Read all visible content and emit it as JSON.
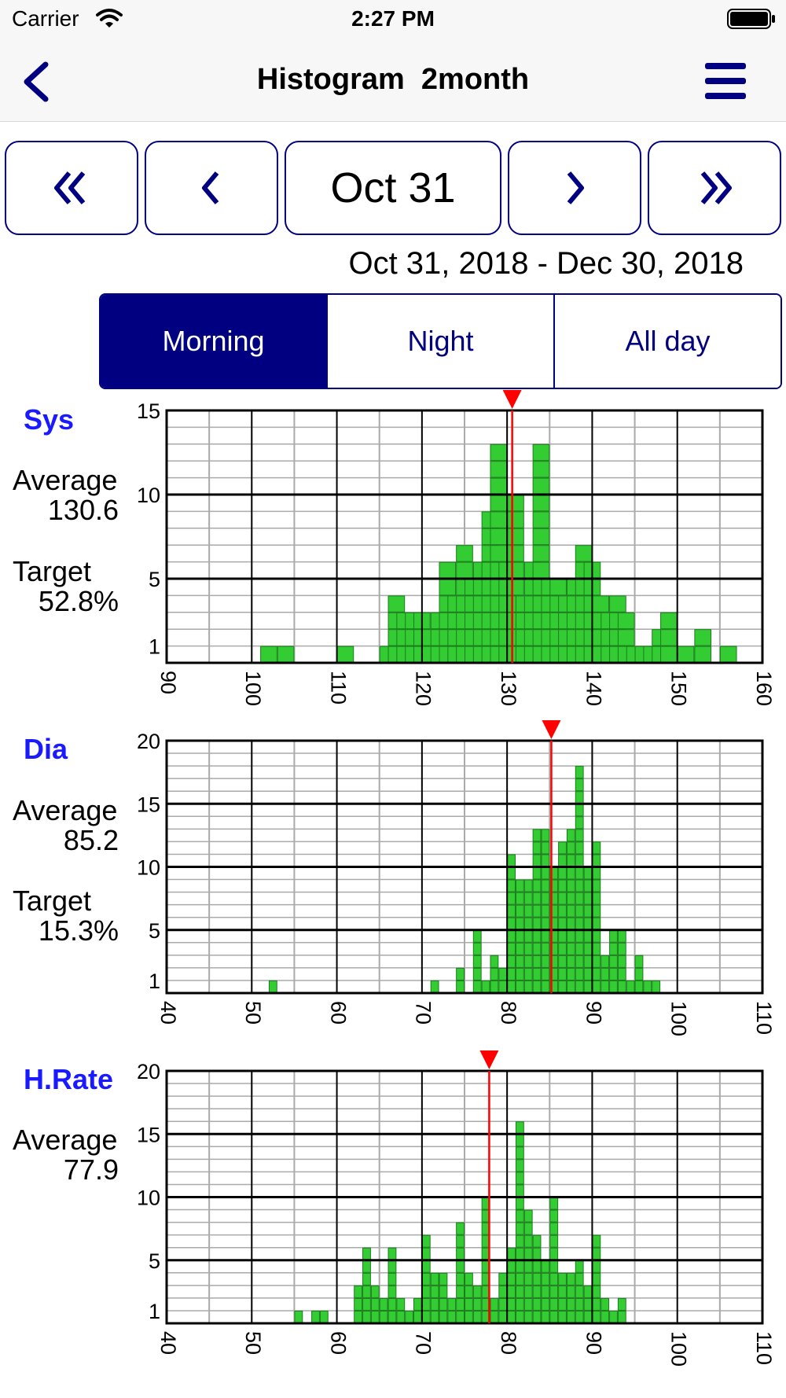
{
  "status_bar": {
    "carrier": "Carrier",
    "time": "2:27 PM"
  },
  "nav": {
    "title": "Histogram  2month",
    "back_icon": "chevron-left-icon",
    "menu_icon": "hamburger-menu-icon"
  },
  "controls": {
    "date_button": "Oct 31",
    "range": "Oct 31, 2018 - Dec 30, 2018",
    "icons": [
      "double-chevron-left-icon",
      "chevron-left-icon",
      "chevron-right-icon",
      "double-chevron-right-icon"
    ]
  },
  "segments": [
    {
      "label": "Morning",
      "selected": true
    },
    {
      "label": "Night",
      "selected": false
    },
    {
      "label": "All day",
      "selected": false
    }
  ],
  "colors": {
    "accent": "#000080",
    "bar": "#33cc33",
    "marker": "#ff0000",
    "title": "#1a1aff"
  },
  "panels": [
    {
      "title": "Sys",
      "average_label": "Average",
      "average": "130.6",
      "target_label": "Target",
      "target": "52.8%"
    },
    {
      "title": "Dia",
      "average_label": "Average",
      "average": "85.2",
      "target_label": "Target",
      "target": "15.3%"
    },
    {
      "title": "H.Rate",
      "average_label": "Average",
      "average": "77.9"
    }
  ],
  "chart_data": [
    {
      "type": "bar",
      "xlim": [
        90,
        160
      ],
      "ylim": [
        0,
        15
      ],
      "x_ticks": [
        90,
        100,
        110,
        120,
        130,
        140,
        150,
        160
      ],
      "y_ticks": [
        1,
        5,
        10,
        15
      ],
      "bin_width": 2,
      "marker": 130.6,
      "bins": [
        [
          101,
          1
        ],
        [
          103,
          1
        ],
        [
          110,
          1
        ],
        [
          115,
          1
        ],
        [
          116,
          4
        ],
        [
          117,
          3
        ],
        [
          118,
          3
        ],
        [
          119,
          3
        ],
        [
          120,
          2
        ],
        [
          121,
          3
        ],
        [
          122,
          6
        ],
        [
          123,
          4
        ],
        [
          124,
          7
        ],
        [
          125,
          5
        ],
        [
          126,
          6
        ],
        [
          127,
          9
        ],
        [
          128,
          13
        ],
        [
          129,
          6
        ],
        [
          130,
          10
        ],
        [
          131,
          4
        ],
        [
          132,
          6
        ],
        [
          133,
          13
        ],
        [
          134,
          5
        ],
        [
          135,
          5
        ],
        [
          136,
          4
        ],
        [
          137,
          5
        ],
        [
          138,
          7
        ],
        [
          139,
          6
        ],
        [
          140,
          4
        ],
        [
          141,
          3
        ],
        [
          142,
          4
        ],
        [
          143,
          3
        ],
        [
          144,
          1
        ],
        [
          145,
          1
        ],
        [
          146,
          1
        ],
        [
          147,
          2
        ],
        [
          148,
          3
        ],
        [
          150,
          1
        ],
        [
          152,
          2
        ],
        [
          155,
          1
        ]
      ]
    },
    {
      "type": "bar",
      "xlim": [
        40,
        110
      ],
      "ylim": [
        0,
        20
      ],
      "x_ticks": [
        40,
        50,
        60,
        70,
        80,
        90,
        100,
        110
      ],
      "y_ticks": [
        1,
        5,
        10,
        15,
        20
      ],
      "bin_width": 1,
      "marker": 85.2,
      "bins": [
        [
          52,
          1
        ],
        [
          71,
          1
        ],
        [
          74,
          2
        ],
        [
          76,
          5
        ],
        [
          77,
          1
        ],
        [
          78,
          3
        ],
        [
          79,
          2
        ],
        [
          80,
          11
        ],
        [
          81,
          9
        ],
        [
          82,
          9
        ],
        [
          83,
          13
        ],
        [
          84,
          13
        ],
        [
          85,
          10
        ],
        [
          86,
          12
        ],
        [
          87,
          13
        ],
        [
          88,
          18
        ],
        [
          89,
          10
        ],
        [
          90,
          12
        ],
        [
          91,
          3
        ],
        [
          92,
          5
        ],
        [
          93,
          5
        ],
        [
          94,
          1
        ],
        [
          95,
          3
        ],
        [
          96,
          1
        ],
        [
          97,
          1
        ]
      ]
    },
    {
      "type": "bar",
      "xlim": [
        40,
        110
      ],
      "ylim": [
        0,
        20
      ],
      "x_ticks": [
        40,
        50,
        60,
        70,
        80,
        90,
        100,
        110
      ],
      "y_ticks": [
        1,
        5,
        10,
        15,
        20
      ],
      "bin_width": 1,
      "marker": 77.9,
      "bins": [
        [
          55,
          1
        ],
        [
          57,
          1
        ],
        [
          58,
          1
        ],
        [
          62,
          3
        ],
        [
          63,
          6
        ],
        [
          64,
          3
        ],
        [
          65,
          2
        ],
        [
          66,
          6
        ],
        [
          67,
          2
        ],
        [
          68,
          1
        ],
        [
          69,
          2
        ],
        [
          70,
          7
        ],
        [
          71,
          4
        ],
        [
          72,
          4
        ],
        [
          73,
          2
        ],
        [
          74,
          8
        ],
        [
          75,
          4
        ],
        [
          76,
          3
        ],
        [
          77,
          10
        ],
        [
          78,
          2
        ],
        [
          79,
          4
        ],
        [
          80,
          6
        ],
        [
          81,
          16
        ],
        [
          82,
          9
        ],
        [
          83,
          7
        ],
        [
          84,
          5
        ],
        [
          85,
          10
        ],
        [
          86,
          4
        ],
        [
          87,
          4
        ],
        [
          88,
          5
        ],
        [
          89,
          3
        ],
        [
          90,
          7
        ],
        [
          91,
          2
        ],
        [
          92,
          1
        ],
        [
          93,
          2
        ]
      ]
    }
  ]
}
